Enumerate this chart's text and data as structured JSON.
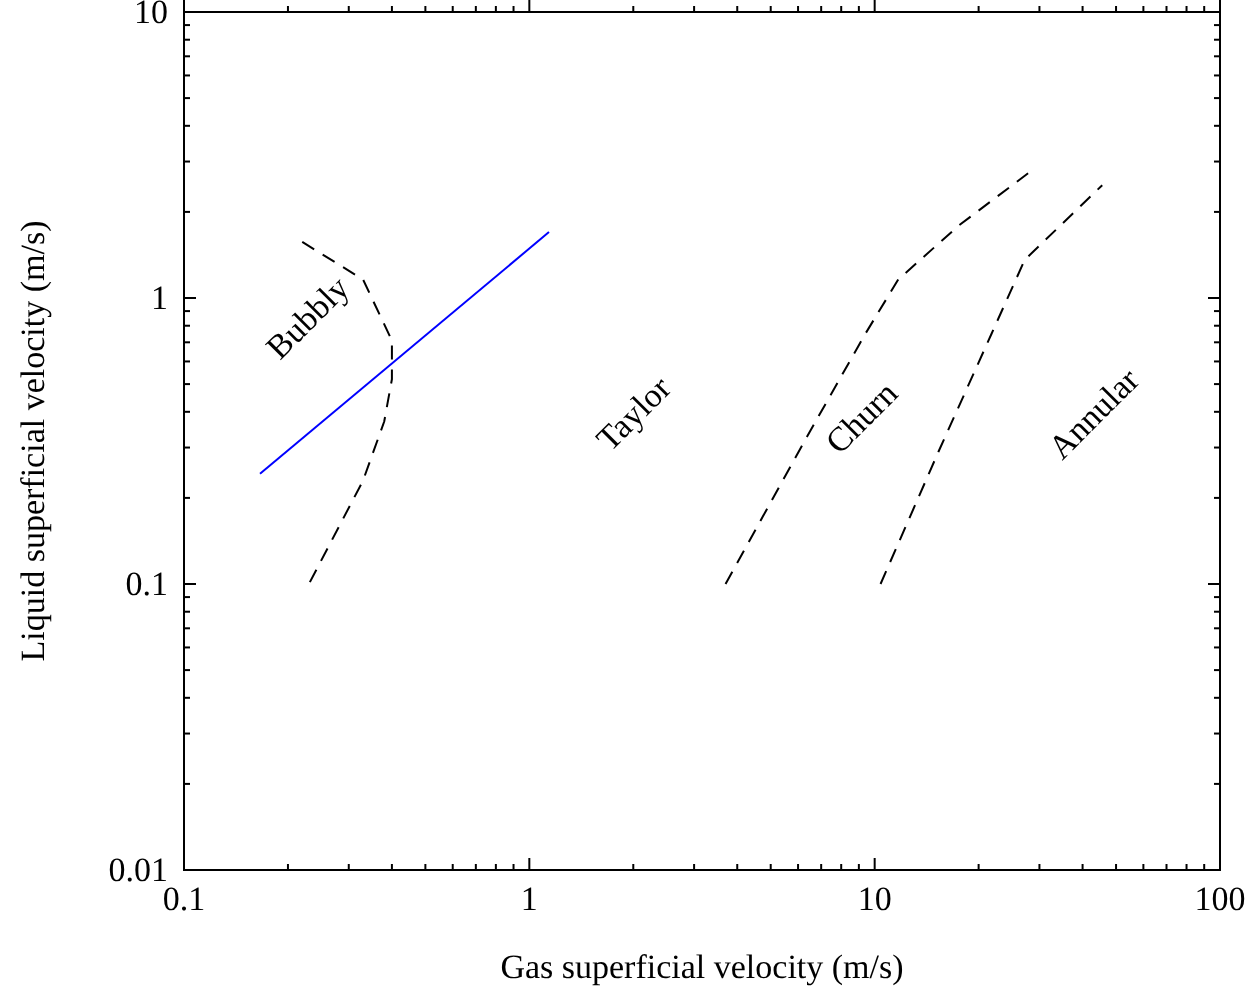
{
  "chart_data": {
    "type": "line",
    "xlabel": "Gas superficial velocity (m/s)",
    "ylabel": "Liquid superficial velocity (m/s)",
    "log": "xy",
    "xlim": [
      0.1,
      100
    ],
    "ylim": [
      0.01,
      10
    ],
    "xticks": [
      0.1,
      {
        "value": 0.2,
        "label": null
      },
      {
        "value": 0.3,
        "label": null
      },
      {
        "value": 0.4,
        "label": null
      },
      {
        "value": 0.5,
        "label": null
      },
      {
        "value": 0.6,
        "label": null
      },
      {
        "value": 0.7,
        "label": null
      },
      {
        "value": 0.8,
        "label": null
      },
      {
        "value": 0.9,
        "label": null
      },
      1,
      {
        "value": 2,
        "label": null
      },
      {
        "value": 3,
        "label": null
      },
      {
        "value": 4,
        "label": null
      },
      {
        "value": 5,
        "label": null
      },
      {
        "value": 6,
        "label": null
      },
      {
        "value": 7,
        "label": null
      },
      {
        "value": 8,
        "label": null
      },
      {
        "value": 9,
        "label": null
      },
      10,
      {
        "value": 20,
        "label": null
      },
      {
        "value": 30,
        "label": null
      },
      {
        "value": 40,
        "label": null
      },
      {
        "value": 50,
        "label": null
      },
      {
        "value": 60,
        "label": null
      },
      {
        "value": 70,
        "label": null
      },
      {
        "value": 80,
        "label": null
      },
      {
        "value": 90,
        "label": null
      },
      100
    ],
    "yticks": [
      0.01,
      {
        "value": 0.02,
        "label": null
      },
      {
        "value": 0.03,
        "label": null
      },
      {
        "value": 0.04,
        "label": null
      },
      {
        "value": 0.05,
        "label": null
      },
      {
        "value": 0.06,
        "label": null
      },
      {
        "value": 0.07,
        "label": null
      },
      {
        "value": 0.08,
        "label": null
      },
      {
        "value": 0.09,
        "label": null
      },
      0.1,
      {
        "value": 0.2,
        "label": null
      },
      {
        "value": 0.3,
        "label": null
      },
      {
        "value": 0.4,
        "label": null
      },
      {
        "value": 0.5,
        "label": null
      },
      {
        "value": 0.6,
        "label": null
      },
      {
        "value": 0.7,
        "label": null
      },
      {
        "value": 0.8,
        "label": null
      },
      {
        "value": 0.9,
        "label": null
      },
      1,
      {
        "value": 2,
        "label": null
      },
      {
        "value": 3,
        "label": null
      },
      {
        "value": 4,
        "label": null
      },
      {
        "value": 5,
        "label": null
      },
      {
        "value": 6,
        "label": null
      },
      {
        "value": 7,
        "label": null
      },
      {
        "value": 8,
        "label": null
      },
      {
        "value": 9,
        "label": null
      },
      10
    ],
    "grid": false,
    "series": [
      {
        "color": "#000000",
        "line_style": "dashed",
        "x": [
          0.22,
          0.33,
          0.4,
          0.4,
          0.38,
          0.33,
          0.23
        ],
        "values": [
          1.57,
          1.16,
          0.71,
          0.52,
          0.37,
          0.23,
          0.1
        ]
      },
      {
        "color": "#0000ff",
        "line_style": "solid",
        "x": [
          0.166,
          1.14
        ],
        "values": [
          0.243,
          1.7
        ]
      },
      {
        "color": "#000000",
        "line_style": "dashed",
        "x": [
          3.7,
          6.3,
          9.4,
          11.7,
          17.5,
          28.6
        ],
        "values": [
          0.1,
          0.32,
          0.75,
          1.16,
          1.79,
          2.8
        ]
      },
      {
        "color": "#000000",
        "line_style": "dashed",
        "x": [
          10.4,
          15.3,
          21.8,
          27.2,
          45.6
        ],
        "values": [
          0.1,
          0.29,
          0.75,
          1.36,
          2.48
        ]
      }
    ],
    "annotations": [
      "Bubbly",
      "Taylor",
      "Churn",
      "Annular"
    ]
  }
}
